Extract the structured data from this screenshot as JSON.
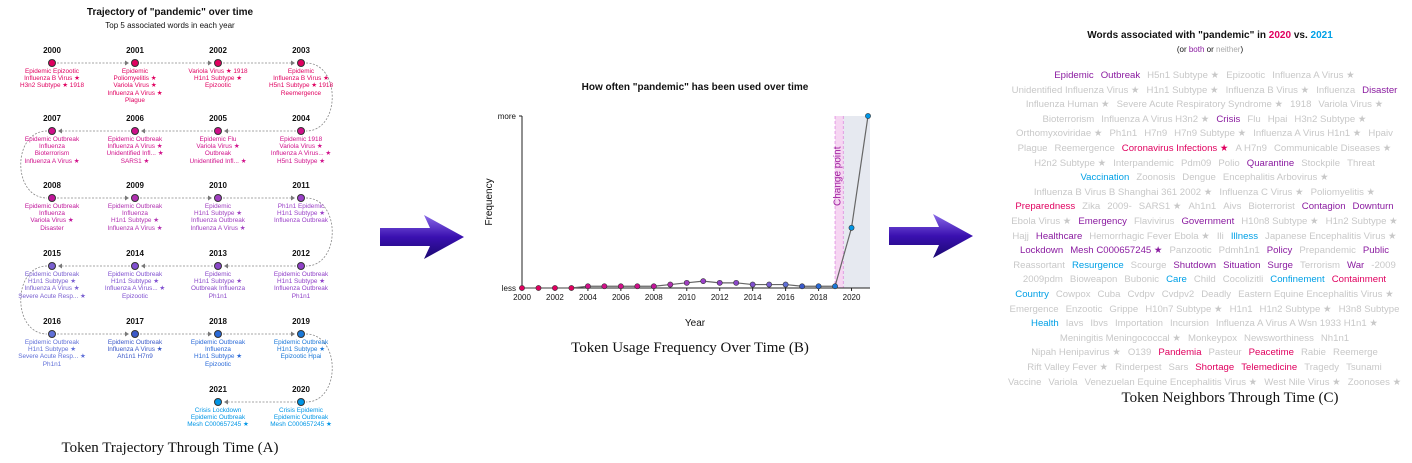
{
  "colors": {
    "y2020": "#e0005f",
    "y2021": "#00a0e6",
    "both": "#8a1ba0",
    "neither": "#c8c8c8",
    "line": "#666666",
    "arrow": "#4b14b4"
  },
  "panelA": {
    "title": "Trajectory of \"pandemic\" over time",
    "subtitle": "Top 5 associated words in each year",
    "caption": "Token Trajectory Through Time (A)",
    "years": [
      {
        "year": "2000",
        "color": "#e0005f",
        "words": [
          "Epidemic  Epizootic",
          "Influenza B Virus ★",
          "H3n2 Subtype ★  1918"
        ]
      },
      {
        "year": "2001",
        "color": "#e0005f",
        "words": [
          "Epidemic",
          "Poliomyelitis ★",
          "Variola Virus ★",
          "Influenza A Virus ★",
          "Plague"
        ]
      },
      {
        "year": "2002",
        "color": "#e0005f",
        "words": [
          "Variola Virus ★  1918",
          "H1n1 Subtype ★",
          "Epizootic"
        ]
      },
      {
        "year": "2003",
        "color": "#e0005f",
        "words": [
          "Epidemic",
          "Influenza B Virus ★",
          "H5n1 Subtype ★  1918",
          "Reemergence"
        ]
      },
      {
        "year": "2007",
        "color": "#d0108a",
        "words": [
          "Epidemic  Outbreak",
          "Influenza",
          "Bioterrorism",
          "Influenza A Virus ★"
        ]
      },
      {
        "year": "2006",
        "color": "#d0108a",
        "words": [
          "Epidemic  Outbreak",
          "Influenza A Virus ★",
          "Unidentified Infl... ★",
          "SARS1 ★"
        ]
      },
      {
        "year": "2005",
        "color": "#d0108a",
        "words": [
          "Epidemic  Flu",
          "Variola Virus ★",
          "Outbreak",
          "Unidentified Infl... ★"
        ]
      },
      {
        "year": "2004",
        "color": "#d0108a",
        "words": [
          "Epidemic  1918",
          "Variola Virus ★",
          "Influenza A Virus... ★",
          "H5n1 Subtype ★"
        ]
      },
      {
        "year": "2008",
        "color": "#c0159a",
        "words": [
          "Epidemic  Outbreak",
          "Influenza",
          "Variola Virus ★",
          "Disaster"
        ]
      },
      {
        "year": "2009",
        "color": "#b030b0",
        "words": [
          "Epidemic  Outbreak",
          "Influenza",
          "H1n1 Subtype ★",
          "Influenza A Virus ★"
        ]
      },
      {
        "year": "2010",
        "color": "#a040c0",
        "words": [
          "Epidemic",
          "H1n1 Subtype ★",
          "Influenza  Outbreak",
          "Influenza A Virus ★"
        ]
      },
      {
        "year": "2011",
        "color": "#9a40c8",
        "words": [
          "Ph1n1  Epidemic",
          "H1n1 Subtype ★",
          "Influenza  Outbreak"
        ]
      },
      {
        "year": "2015",
        "color": "#7a60d0",
        "words": [
          "Epidemic  Outbreak",
          "H1n1 Subtype ★",
          "Influenza A Virus ★",
          "Severe Acute Resp... ★"
        ]
      },
      {
        "year": "2014",
        "color": "#8050d0",
        "words": [
          "Epidemic  Outbreak",
          "H1n1 Subtype ★",
          "Influenza A Virus... ★",
          "Epizootic"
        ]
      },
      {
        "year": "2013",
        "color": "#8a48c8",
        "words": [
          "Epidemic",
          "H1n1 Subtype ★",
          "Outbreak  Influenza",
          "Ph1n1"
        ]
      },
      {
        "year": "2012",
        "color": "#9040c8",
        "words": [
          "Epidemic  Outbreak",
          "H1n1 Subtype ★",
          "Influenza  Outbreak",
          "Ph1n1"
        ]
      },
      {
        "year": "2016",
        "color": "#6070d8",
        "words": [
          "Epidemic  Outbreak",
          "H1n1 Subtype ★",
          "Severe Acute Resp... ★",
          "Ph1n1"
        ]
      },
      {
        "year": "2017",
        "color": "#3a58c8",
        "words": [
          "Epidemic  Outbreak",
          "Influenza A Virus ★",
          "Ah1n1  H7n9"
        ]
      },
      {
        "year": "2018",
        "color": "#2a6ad8",
        "words": [
          "Epidemic  Outbreak",
          "Influenza",
          "H1n1 Subtype ★",
          "Epizootic"
        ]
      },
      {
        "year": "2019",
        "color": "#1a78d8",
        "words": [
          "Epidemic  Outbreak",
          "H1n1 Subtype ★",
          "Epizootic  Hpai"
        ]
      },
      {
        "year": "2021",
        "color": "#0096e6",
        "words": [
          "Crisis  Lockdown",
          "Epidemic  Outbreak",
          "Mesh C000657245 ★"
        ]
      },
      {
        "year": "2020",
        "color": "#0096e6",
        "words": [
          "Crisis  Epidemic",
          "Epidemic  Outbreak",
          "Mesh C000657245 ★"
        ]
      }
    ]
  },
  "panelB": {
    "title": "How often \"pandemic\" has been used over time",
    "caption": "Token Usage Frequency Over Time (B)",
    "annotation": "Change point"
  },
  "chart_data": {
    "type": "line",
    "title": "How often \"pandemic\" has been used over time",
    "xlabel": "Year",
    "ylabel": "Frequency",
    "ytick_labels": [
      "less",
      "more"
    ],
    "x": [
      2000,
      2001,
      2002,
      2003,
      2004,
      2005,
      2006,
      2007,
      2008,
      2009,
      2010,
      2011,
      2012,
      2013,
      2014,
      2015,
      2016,
      2017,
      2018,
      2019,
      2020,
      2021
    ],
    "values": [
      0.0,
      0.0,
      0.0,
      0.0,
      0.01,
      0.01,
      0.01,
      0.01,
      0.01,
      0.02,
      0.03,
      0.04,
      0.03,
      0.03,
      0.02,
      0.02,
      0.02,
      0.01,
      0.01,
      0.01,
      0.35,
      1.0
    ],
    "xticks": [
      "2000",
      "2002",
      "2004",
      "2006",
      "2008",
      "2010",
      "2012",
      "2014",
      "2016",
      "2018",
      "2020"
    ],
    "xlim": [
      2000,
      2021
    ],
    "ylim": [
      0,
      1
    ],
    "change_point": 2019.5
  },
  "panelC": {
    "title_pre": "Words associated with \"pandemic\" in ",
    "title_y1": "2020",
    "title_mid": " vs. ",
    "title_y2": "2021",
    "sub_pre": "(or ",
    "sub_both": "both",
    "sub_mid": " or ",
    "sub_neither": "neither",
    "sub_post": ")",
    "caption": "Token Neighbors Through Time (C)",
    "rows": [
      [
        [
          "Epidemic",
          "b"
        ],
        [
          "Outbreak",
          "b"
        ],
        [
          "H5n1 Subtype ★",
          "n"
        ],
        [
          "Epizootic",
          "n"
        ],
        [
          "Influenza A Virus ★",
          "n"
        ]
      ],
      [
        [
          "Unidentified Influenza Virus ★",
          "n"
        ],
        [
          "H1n1 Subtype ★",
          "n"
        ],
        [
          "Influenza B Virus ★",
          "n"
        ],
        [
          "Influenza",
          "n"
        ],
        [
          "Disaster",
          "b"
        ]
      ],
      [
        [
          "Influenza Human ★",
          "n"
        ],
        [
          "Severe Acute Respiratory Syndrome ★",
          "n"
        ],
        [
          "1918",
          "n"
        ],
        [
          "Variola Virus ★",
          "n"
        ]
      ],
      [
        [
          "Bioterrorism",
          "n"
        ],
        [
          "Influenza A Virus H3n2 ★",
          "n"
        ],
        [
          "Crisis",
          "b"
        ],
        [
          "Flu",
          "n"
        ],
        [
          "Hpai",
          "n"
        ],
        [
          "H3n2 Subtype ★",
          "n"
        ]
      ],
      [
        [
          "Orthomyxoviridae ★",
          "n"
        ],
        [
          "Ph1n1",
          "n"
        ],
        [
          "H7n9",
          "n"
        ],
        [
          "H7n9 Subtype ★",
          "n"
        ],
        [
          "Influenza A Virus H1n1 ★",
          "n"
        ],
        [
          "Hpaiv",
          "n"
        ]
      ],
      [
        [
          "Plague",
          "n"
        ],
        [
          "Reemergence",
          "n"
        ],
        [
          "Coronavirus Infections ★",
          "a"
        ],
        [
          "A H7n9",
          "n"
        ],
        [
          "Communicable Diseases ★",
          "n"
        ]
      ],
      [
        [
          "H2n2 Subtype ★",
          "n"
        ],
        [
          "Interpandemic",
          "n"
        ],
        [
          "Pdm09",
          "n"
        ],
        [
          "Polio",
          "n"
        ],
        [
          "Quarantine",
          "b"
        ],
        [
          "Stockpile",
          "n"
        ],
        [
          "Threat",
          "n"
        ]
      ],
      [
        [
          "Vaccination",
          "c"
        ],
        [
          "Zoonosis",
          "n"
        ],
        [
          "Dengue",
          "n"
        ],
        [
          "Encephalitis Arbovirus ★",
          "n"
        ]
      ],
      [
        [
          "Influenza B Virus B Shanghai 361 2002 ★",
          "n"
        ],
        [
          "Influenza C Virus ★",
          "n"
        ],
        [
          "Poliomyelitis ★",
          "n"
        ]
      ],
      [
        [
          "Preparedness",
          "a"
        ],
        [
          "Zika",
          "n"
        ],
        [
          "2009-",
          "n"
        ],
        [
          "SARS1 ★",
          "n"
        ],
        [
          "Ah1n1",
          "n"
        ],
        [
          "Aivs",
          "n"
        ],
        [
          "Bioterrorist",
          "n"
        ],
        [
          "Contagion",
          "b"
        ],
        [
          "Downturn",
          "b"
        ]
      ],
      [
        [
          "Ebola Virus ★",
          "n"
        ],
        [
          "Emergency",
          "b"
        ],
        [
          "Flavivirus",
          "n"
        ],
        [
          "Government",
          "b"
        ],
        [
          "H10n8 Subtype ★",
          "n"
        ],
        [
          "H1n2 Subtype ★",
          "n"
        ]
      ],
      [
        [
          "Hajj",
          "n"
        ],
        [
          "Healthcare",
          "b"
        ],
        [
          "Hemorrhagic Fever Ebola ★",
          "n"
        ],
        [
          "Ili",
          "n"
        ],
        [
          "Illness",
          "c"
        ],
        [
          "Japanese Encephalitis Virus ★",
          "n"
        ]
      ],
      [
        [
          "Lockdown",
          "b"
        ],
        [
          "Mesh C000657245 ★",
          "b"
        ],
        [
          "Panzootic",
          "n"
        ],
        [
          "Pdmh1n1",
          "n"
        ],
        [
          "Policy",
          "b"
        ],
        [
          "Prepandemic",
          "n"
        ],
        [
          "Public",
          "b"
        ]
      ],
      [
        [
          "Reassortant",
          "n"
        ],
        [
          "Resurgence",
          "c"
        ],
        [
          "Scourge",
          "n"
        ],
        [
          "Shutdown",
          "b"
        ],
        [
          "Situation",
          "b"
        ],
        [
          "Surge",
          "b"
        ],
        [
          "Terrorism",
          "n"
        ],
        [
          "War",
          "b"
        ],
        [
          "-2009",
          "n"
        ]
      ],
      [
        [
          "2009pdm",
          "n"
        ],
        [
          "Bioweapon",
          "n"
        ],
        [
          "Bubonic",
          "n"
        ],
        [
          "Care",
          "c"
        ],
        [
          "Child",
          "n"
        ],
        [
          "Cocolizitli",
          "n"
        ],
        [
          "Confinement",
          "c"
        ],
        [
          "Containment",
          "a"
        ]
      ],
      [
        [
          "Country",
          "c"
        ],
        [
          "Cowpox",
          "n"
        ],
        [
          "Cuba",
          "n"
        ],
        [
          "Cvdpv",
          "n"
        ],
        [
          "Cvdpv2",
          "n"
        ],
        [
          "Deadly",
          "n"
        ],
        [
          "Eastern Equine Encephalitis Virus ★",
          "n"
        ]
      ],
      [
        [
          "Emergence",
          "n"
        ],
        [
          "Enzootic",
          "n"
        ],
        [
          "Grippe",
          "n"
        ],
        [
          "H10n7 Subtype ★",
          "n"
        ],
        [
          "H1n1",
          "n"
        ],
        [
          "H1n2 Subtype ★",
          "n"
        ],
        [
          "H3n8 Subtype",
          "n"
        ]
      ],
      [
        [
          "Health",
          "c"
        ],
        [
          "Iavs",
          "n"
        ],
        [
          "Ibvs",
          "n"
        ],
        [
          "Importation",
          "n"
        ],
        [
          "Incursion",
          "n"
        ],
        [
          "Influenza A Virus A Wsn 1933 H1n1 ★",
          "n"
        ]
      ],
      [
        [
          "Meningitis Meningococcal ★",
          "n"
        ],
        [
          "Monkeypox",
          "n"
        ],
        [
          "Newsworthiness",
          "n"
        ],
        [
          "Nh1n1",
          "n"
        ]
      ],
      [
        [
          "Nipah Henipavirus ★",
          "n"
        ],
        [
          "O139",
          "n"
        ],
        [
          "Pandemia",
          "a"
        ],
        [
          "Pasteur",
          "n"
        ],
        [
          "Peacetime",
          "a"
        ],
        [
          "Rabie",
          "n"
        ],
        [
          "Reemerge",
          "n"
        ]
      ],
      [
        [
          "Rift Valley Fever ★",
          "n"
        ],
        [
          "Rinderpest",
          "n"
        ],
        [
          "Sars",
          "n"
        ],
        [
          "Shortage",
          "a"
        ],
        [
          "Telemedicine",
          "a"
        ],
        [
          "Tragedy",
          "n"
        ],
        [
          "Tsunami",
          "n"
        ]
      ],
      [
        [
          "Vaccine",
          "n"
        ],
        [
          "Variola",
          "n"
        ],
        [
          "Venezuelan Equine Encephalitis Virus ★",
          "n"
        ],
        [
          "West Nile Virus ★",
          "n"
        ],
        [
          "Zoonoses ★",
          "n"
        ]
      ]
    ]
  }
}
